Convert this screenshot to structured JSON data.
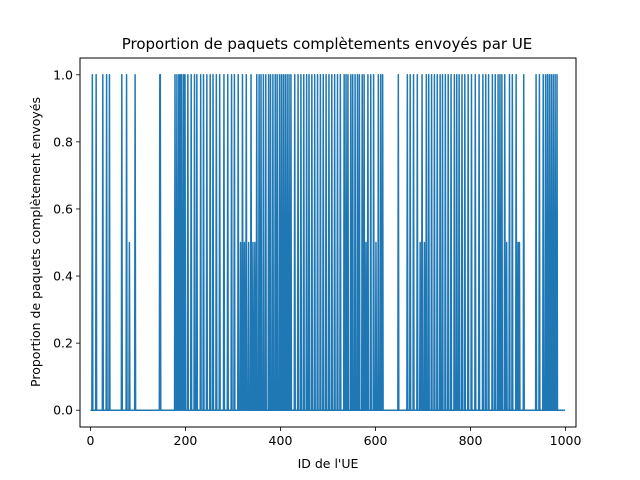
{
  "chart_data": {
    "type": "line",
    "title": "Proportion de paquets complètements envoyés par UE",
    "xlabel": "ID de l'UE",
    "ylabel": "Proportion de paquets complètement envoyés",
    "xlim": [
      -22,
      1022
    ],
    "ylim": [
      -0.05,
      1.05
    ],
    "xticks": [
      0,
      200,
      400,
      600,
      800,
      1000
    ],
    "xtick_labels": [
      "0",
      "200",
      "400",
      "600",
      "800",
      "1000"
    ],
    "yticks": [
      0.0,
      0.2,
      0.4,
      0.6,
      0.8,
      1.0
    ],
    "ytick_labels": [
      "0.0",
      "0.2",
      "0.4",
      "0.6",
      "0.8",
      "1.0"
    ],
    "grid": false,
    "line_color": "#1f77b4",
    "series": [
      {
        "name": "",
        "x_count": 1000,
        "x_start": 0,
        "spikes": [
          [
            4,
            1
          ],
          [
            12,
            1
          ],
          [
            26,
            1
          ],
          [
            34,
            1
          ],
          [
            40,
            1
          ],
          [
            66,
            1
          ],
          [
            76,
            1
          ],
          [
            82,
            0.5
          ],
          [
            94,
            1
          ],
          [
            146,
            1
          ],
          [
            147,
            1
          ],
          [
            178,
            1
          ],
          [
            182,
            1
          ],
          [
            186,
            1
          ],
          [
            189,
            1
          ],
          [
            192,
            1
          ],
          [
            196,
            1
          ],
          [
            199,
            1
          ],
          [
            205,
            1
          ],
          [
            212,
            1
          ],
          [
            219,
            1
          ],
          [
            224,
            1
          ],
          [
            232,
            1
          ],
          [
            238,
            1
          ],
          [
            245,
            1
          ],
          [
            252,
            1
          ],
          [
            258,
            1
          ],
          [
            265,
            1
          ],
          [
            272,
            1
          ],
          [
            281,
            1
          ],
          [
            289,
            1
          ],
          [
            297,
            1
          ],
          [
            303,
            1
          ],
          [
            311,
            1
          ],
          [
            316,
            0.5
          ],
          [
            320,
            1
          ],
          [
            324,
            0.5
          ],
          [
            328,
            1
          ],
          [
            333,
            0.5
          ],
          [
            338,
            1
          ],
          [
            342,
            0.5
          ],
          [
            346,
            0.5
          ],
          [
            350,
            1
          ],
          [
            355,
            1
          ],
          [
            359,
            1
          ],
          [
            364,
            1
          ],
          [
            369,
            1
          ],
          [
            375,
            1
          ],
          [
            379,
            1
          ],
          [
            384,
            1
          ],
          [
            389,
            1
          ],
          [
            393,
            1
          ],
          [
            398,
            1
          ],
          [
            402,
            1
          ],
          [
            406,
            1
          ],
          [
            410,
            1
          ],
          [
            414,
            1
          ],
          [
            418,
            1
          ],
          [
            422,
            1
          ],
          [
            430,
            1
          ],
          [
            437,
            1
          ],
          [
            443,
            1
          ],
          [
            449,
            1
          ],
          [
            455,
            1
          ],
          [
            460,
            1
          ],
          [
            466,
            1
          ],
          [
            472,
            1
          ],
          [
            478,
            1
          ],
          [
            484,
            1
          ],
          [
            490,
            1
          ],
          [
            496,
            1
          ],
          [
            502,
            1
          ],
          [
            508,
            1
          ],
          [
            514,
            1
          ],
          [
            520,
            1
          ],
          [
            526,
            1
          ],
          [
            534,
            1
          ],
          [
            538,
            1
          ],
          [
            542,
            1
          ],
          [
            548,
            1
          ],
          [
            552,
            1
          ],
          [
            557,
            1
          ],
          [
            562,
            1
          ],
          [
            566,
            1
          ],
          [
            572,
            1
          ],
          [
            576,
            1
          ],
          [
            580,
            0.5
          ],
          [
            584,
            1
          ],
          [
            590,
            1
          ],
          [
            596,
            1
          ],
          [
            601,
            0.5
          ],
          [
            606,
            1
          ],
          [
            611,
            1
          ],
          [
            615,
            1
          ],
          [
            648,
            1
          ],
          [
            667,
            1
          ],
          [
            673,
            1
          ],
          [
            680,
            1
          ],
          [
            688,
            1
          ],
          [
            694,
            0.5
          ],
          [
            698,
            1
          ],
          [
            703,
            0.5
          ],
          [
            707,
            1
          ],
          [
            712,
            1
          ],
          [
            718,
            1
          ],
          [
            724,
            1
          ],
          [
            730,
            1
          ],
          [
            736,
            1
          ],
          [
            741,
            1
          ],
          [
            747,
            1
          ],
          [
            753,
            1
          ],
          [
            759,
            1
          ],
          [
            766,
            1
          ],
          [
            771,
            1
          ],
          [
            776,
            1
          ],
          [
            782,
            1
          ],
          [
            788,
            1
          ],
          [
            795,
            1
          ],
          [
            802,
            1
          ],
          [
            810,
            1
          ],
          [
            818,
            1
          ],
          [
            826,
            1
          ],
          [
            832,
            1
          ],
          [
            838,
            1
          ],
          [
            846,
            1
          ],
          [
            852,
            1
          ],
          [
            858,
            1
          ],
          [
            862,
            1
          ],
          [
            866,
            1
          ],
          [
            872,
            1
          ],
          [
            876,
            0.5
          ],
          [
            882,
            1
          ],
          [
            888,
            1
          ],
          [
            896,
            1
          ],
          [
            900,
            0.5
          ],
          [
            903,
            0.5
          ],
          [
            912,
            1
          ],
          [
            938,
            1
          ],
          [
            945,
            1
          ],
          [
            953,
            1
          ],
          [
            958,
            1
          ],
          [
            962,
            1
          ],
          [
            966,
            1
          ],
          [
            970,
            1
          ],
          [
            974,
            1
          ],
          [
            978,
            1
          ],
          [
            982,
            1
          ]
        ],
        "baseline": 0
      }
    ]
  }
}
